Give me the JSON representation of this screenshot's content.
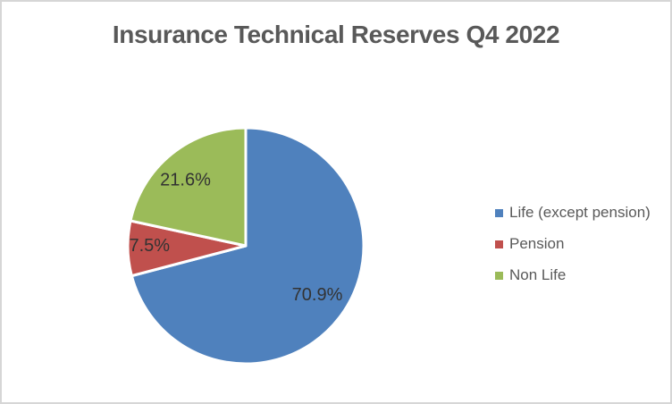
{
  "chart_data": {
    "type": "pie",
    "title": "Insurance Technical Reserves Q4 2022",
    "slices": [
      {
        "label": "Life (except pension)",
        "value": 70.9,
        "display": "70.9%",
        "color": "#4F81BD"
      },
      {
        "label": "Pension",
        "value": 7.5,
        "display": "7.5%",
        "color": "#C0504D"
      },
      {
        "label": "Non Life",
        "value": 21.6,
        "display": "21.6%",
        "color": "#9BBB59"
      }
    ],
    "start_angle_deg": 0,
    "direction": "clockwise",
    "legend_position": "right",
    "grid": "off",
    "colors": {
      "title_text": "#595959",
      "legend_text": "#595959",
      "data_label_text": "#333333",
      "slice_border": "#ffffff",
      "frame_border": "#d6d6d6",
      "background": "#ffffff"
    }
  }
}
